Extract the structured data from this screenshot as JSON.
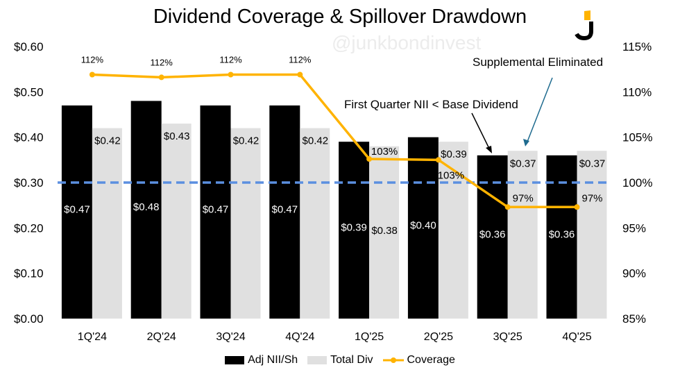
{
  "chart_data": {
    "type": "bar",
    "title": "Dividend Coverage & Spillover Drawdown",
    "watermark": "@junkbondinvest",
    "categories": [
      "1Q'24",
      "2Q'24",
      "3Q'24",
      "4Q'24",
      "1Q'25",
      "2Q'25",
      "3Q'25",
      "4Q'25"
    ],
    "series": [
      {
        "name": "Adj NII/Sh",
        "axis": "left",
        "type": "bar",
        "color": "#000000",
        "values": [
          0.47,
          0.48,
          0.47,
          0.47,
          0.39,
          0.4,
          0.36,
          0.36
        ],
        "labels": [
          "$0.47",
          "$0.48",
          "$0.47",
          "$0.47",
          "$0.39",
          "$0.40",
          "$0.36",
          "$0.36"
        ]
      },
      {
        "name": "Total Div",
        "axis": "left",
        "type": "bar",
        "color": "#e0e0e0",
        "values": [
          0.42,
          0.43,
          0.42,
          0.42,
          0.38,
          0.39,
          0.37,
          0.37
        ],
        "labels": [
          "$0.42",
          "$0.43",
          "$0.42",
          "$0.42",
          "$0.38",
          "$0.39",
          "$0.37",
          "$0.37"
        ]
      },
      {
        "name": "Coverage",
        "axis": "right",
        "type": "line",
        "color": "#ffb300",
        "values": [
          111.9,
          111.6,
          111.9,
          111.9,
          102.6,
          102.5,
          97.3,
          97.3
        ],
        "labels": [
          "112%",
          "112%",
          "112%",
          "112%",
          "103%",
          "103%",
          "97%",
          "97%"
        ]
      }
    ],
    "left_axis": {
      "ylim": [
        0,
        0.6
      ],
      "ticks": [
        "$0.00",
        "$0.10",
        "$0.20",
        "$0.30",
        "$0.40",
        "$0.50",
        "$0.60"
      ]
    },
    "right_axis": {
      "ylim": [
        85,
        115
      ],
      "ticks": [
        "85%",
        "90%",
        "95%",
        "100%",
        "105%",
        "110%",
        "115%"
      ]
    },
    "reference_line": {
      "value": 0.3,
      "color": "#5b8fe0"
    },
    "annotations": [
      {
        "text": "First Quarter NII < Base Dividend",
        "color": "#000000"
      },
      {
        "text": "Supplemental Eliminated",
        "color": "#1f6b8f"
      }
    ],
    "legend_position": "bottom"
  }
}
